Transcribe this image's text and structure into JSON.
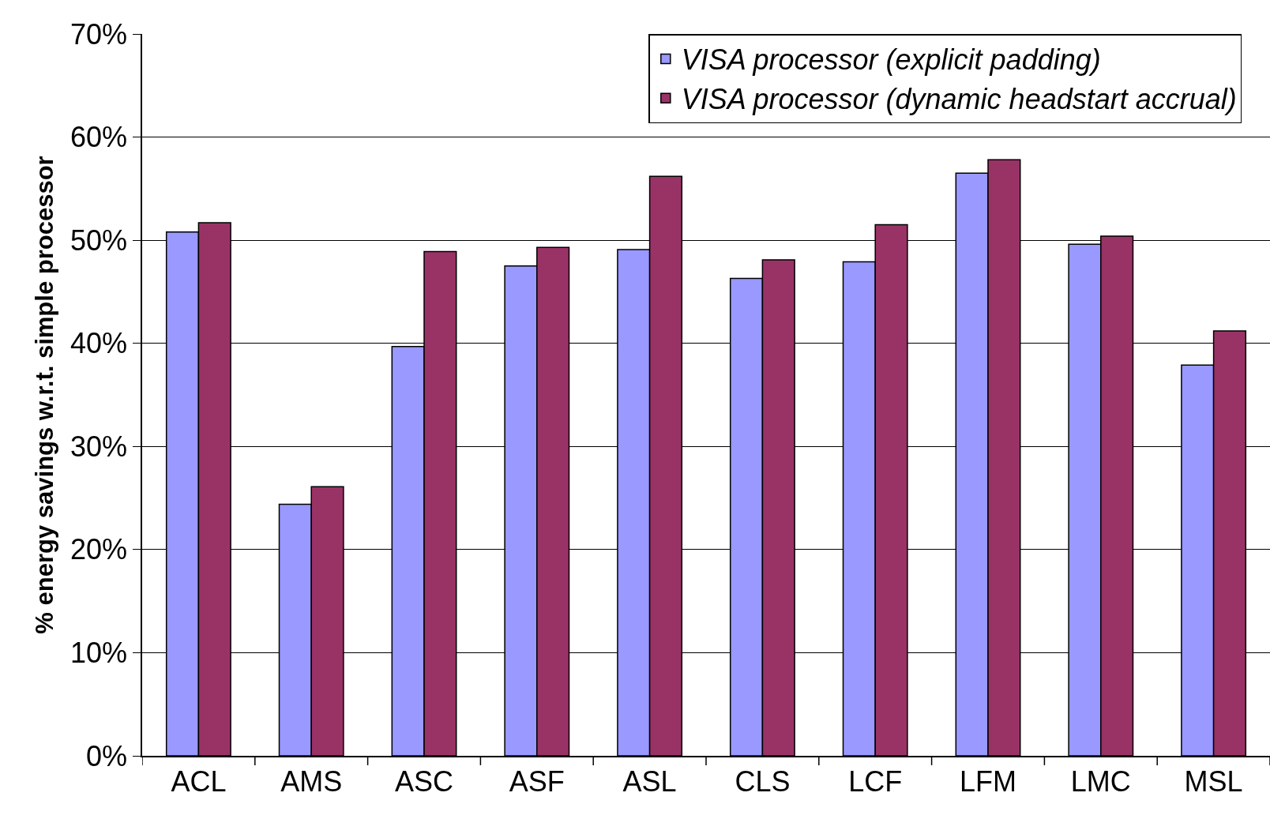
{
  "chart_data": {
    "type": "bar",
    "ylabel": "% energy savings w.r.t. simple processor",
    "categories": [
      "ACL",
      "AMS",
      "ASC",
      "ASF",
      "ASL",
      "CLS",
      "LCF",
      "LFM",
      "LMC",
      "MSL"
    ],
    "series": [
      {
        "name": "VISA processor (explicit padding)",
        "color": "#9999ff",
        "values": [
          50.8,
          24.4,
          39.7,
          47.5,
          49.1,
          46.3,
          47.9,
          56.5,
          49.6,
          37.9
        ]
      },
      {
        "name": "VISA processor (dynamic headstart accrual)",
        "color": "#993366",
        "values": [
          51.7,
          26.1,
          48.9,
          49.3,
          56.2,
          48.1,
          51.5,
          57.8,
          50.4,
          41.2
        ]
      }
    ],
    "ylim": [
      0,
      70
    ],
    "yticks": [
      {
        "value": 0,
        "label": "0%"
      },
      {
        "value": 10,
        "label": "10%"
      },
      {
        "value": 20,
        "label": "20%"
      },
      {
        "value": 30,
        "label": "30%"
      },
      {
        "value": 40,
        "label": "40%"
      },
      {
        "value": 50,
        "label": "50%"
      },
      {
        "value": 60,
        "label": "60%"
      },
      {
        "value": 70,
        "label": "70%"
      }
    ],
    "grid": "y",
    "legend": "top right"
  }
}
